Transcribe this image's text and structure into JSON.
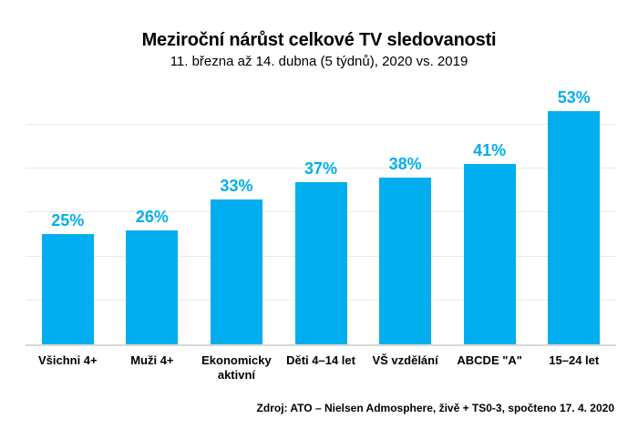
{
  "colors": {
    "bar": "#00AEEF",
    "value_label": "#00AEEF",
    "gridline": "#EAEAEA",
    "baseline": "#D8D8D8",
    "text": "#000000",
    "background": "#FFFFFF"
  },
  "chart_data": {
    "type": "bar",
    "title": "Meziroční nárůst celkové TV sledovanosti",
    "subtitle": "11. března až 14. dubna (5 týdnů), 2020 vs. 2019",
    "source": "Zdroj: ATO – Nielsen Admosphere, živě + TS0-3, spočteno 17. 4. 2020",
    "categories": [
      "Všichni 4+",
      "Muži 4+",
      "Ekonomicky aktivní",
      "Děti 4–14 let",
      "VŠ vzdělání",
      "ABCDE \"A\"",
      "15–24 let"
    ],
    "display_labels": [
      "Všichni 4+",
      "Muži 4+",
      "Ekonomicky\naktivní",
      "Děti 4–14 let",
      "VŠ vzdělání",
      "ABCDE \"A\"",
      "15–24 let"
    ],
    "values": [
      25,
      26,
      33,
      37,
      38,
      41,
      53
    ],
    "value_labels": [
      "25%",
      "26%",
      "33%",
      "37%",
      "38%",
      "41%",
      "53%"
    ],
    "xlabel": "",
    "ylabel": "",
    "ylim": [
      0,
      56
    ],
    "gridlines": [
      10,
      20,
      30,
      40,
      50
    ],
    "grid": "horizontal-light",
    "legend": "none",
    "value_label_format": "percent"
  }
}
